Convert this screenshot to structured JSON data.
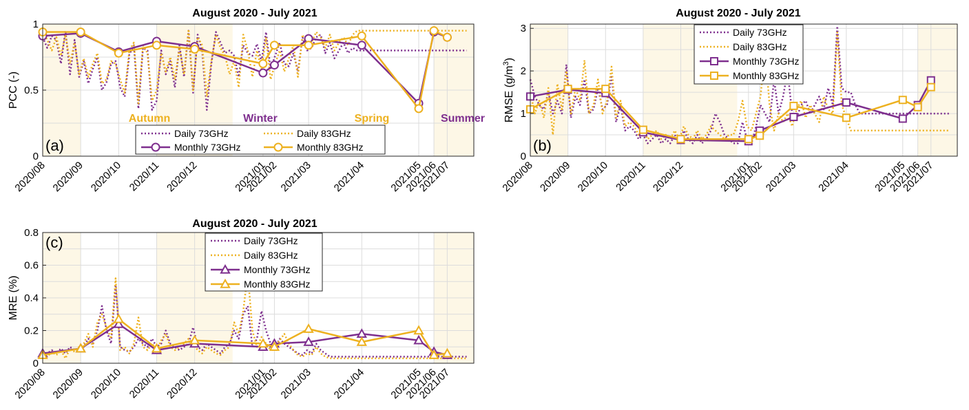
{
  "colors": {
    "c73": "#7e2f8e",
    "c83": "#edb120",
    "shade": "#fdf7e6"
  },
  "month_labels": [
    "2020/08",
    "2020/09",
    "2020/10",
    "2020/11",
    "2020/12",
    "2021/01",
    "2021/02",
    "2021/03",
    "2021/04",
    "2021/05",
    "2021/06",
    "2021/07"
  ],
  "chart_data": [
    {
      "id": "a",
      "type": "line",
      "panel_label": "(a)",
      "title": "August 2020 - July 2021",
      "ylabel": "PCC (-)",
      "ylim": [
        0,
        1
      ],
      "yticks": [
        "0",
        "0.5",
        "1"
      ],
      "grid": true,
      "legend_position": "bottom-center",
      "legend": [
        "Daily 73GHz",
        "Daily 83GHz",
        "Monthly 73GHz",
        "Monthly 83GHz"
      ],
      "season_labels": [
        {
          "text": "Autumn",
          "color": "c83"
        },
        {
          "text": "Winter",
          "color": "c73"
        },
        {
          "text": "Spring",
          "color": "c83"
        },
        {
          "text": "Summer",
          "color": "c73"
        }
      ],
      "x_monthly": [
        0,
        1,
        2,
        3,
        4,
        5.8,
        6.1,
        7,
        8.4,
        9.9,
        10.3,
        10.65
      ],
      "series": [
        {
          "name": "Monthly 73GHz",
          "color": "c73",
          "style": "solid",
          "marker": "circle",
          "values": [
            0.91,
            0.93,
            0.79,
            0.87,
            0.83,
            0.63,
            0.69,
            0.89,
            0.84,
            0.4,
            0.94,
            0.9
          ]
        },
        {
          "name": "Monthly 83GHz",
          "color": "c83",
          "style": "solid",
          "marker": "circle",
          "values": [
            0.94,
            0.94,
            0.78,
            0.84,
            0.81,
            0.7,
            0.84,
            0.84,
            0.91,
            0.36,
            0.95,
            0.9
          ]
        },
        {
          "name": "Daily 73GHz",
          "color": "c73",
          "style": "dotted",
          "start": 0,
          "step": 0.12,
          "values": [
            0.9,
            0.82,
            0.91,
            0.88,
            0.7,
            0.95,
            0.62,
            0.88,
            0.6,
            0.72,
            0.55,
            0.66,
            0.75,
            0.5,
            0.56,
            0.7,
            0.72,
            0.52,
            0.45,
            0.77,
            0.84,
            0.36,
            0.82,
            0.8,
            0.35,
            0.42,
            0.8,
            0.62,
            0.72,
            0.52,
            0.84,
            0.6,
            0.95,
            0.48,
            0.92,
            0.8,
            0.35,
            0.7,
            0.94,
            0.86,
            0.78,
            0.8,
            0.76,
            0.6,
            0.84,
            0.78,
            0.76,
            0.85,
            0.72,
            0.94,
            0.66,
            0.76,
            0.86,
            0.7,
            0.68,
            0.78,
            0.64,
            0.9,
            0.8,
            0.82,
            0.9,
            0.92,
            0.78,
            0.86,
            0.74,
            0.8,
            0.86,
            0.78,
            0.82,
            0.8,
            0.8,
            0.8,
            0.8,
            0.8,
            0.8,
            0.8,
            0.8,
            0.8,
            0.8,
            0.8,
            0.8,
            0.8,
            0.8,
            0.8,
            0.8,
            0.8,
            0.8,
            0.8,
            0.8,
            0.8,
            0.8,
            0.8,
            0.8,
            0.8
          ]
        },
        {
          "name": "Daily 83GHz",
          "color": "c83",
          "style": "dotted",
          "start": 0,
          "step": 0.12,
          "values": [
            0.94,
            0.88,
            0.8,
            0.9,
            0.76,
            0.92,
            0.7,
            0.86,
            0.62,
            0.74,
            0.6,
            0.7,
            0.78,
            0.55,
            0.58,
            0.72,
            0.7,
            0.58,
            0.48,
            0.8,
            0.86,
            0.4,
            0.84,
            0.78,
            0.42,
            0.5,
            0.78,
            0.64,
            0.75,
            0.58,
            0.82,
            0.62,
            0.96,
            0.5,
            0.9,
            0.84,
            0.45,
            0.72,
            0.92,
            0.82,
            0.76,
            0.62,
            0.72,
            0.52,
            0.92,
            0.8,
            0.6,
            0.8,
            0.66,
            0.9,
            0.58,
            0.7,
            0.8,
            0.64,
            0.74,
            0.84,
            0.6,
            0.92,
            0.84,
            0.86,
            0.94,
            0.9,
            0.82,
            0.92,
            0.8,
            0.86,
            0.9,
            0.84,
            0.92,
            0.95,
            0.95,
            0.95,
            0.95,
            0.95,
            0.95,
            0.95,
            0.95,
            0.95,
            0.95,
            0.95,
            0.95,
            0.95,
            0.95,
            0.95,
            0.95,
            0.95,
            0.95,
            0.95,
            0.95,
            0.95,
            0.95,
            0.95,
            0.95,
            0.95
          ]
        }
      ]
    },
    {
      "id": "b",
      "type": "line",
      "panel_label": "(b)",
      "title": "August 2020 - July 2021",
      "ylabel": "RMSE (g/m",
      "ylabel_sup": "3",
      "ylabel_end": ")",
      "ylim": [
        0,
        3.1
      ],
      "yticks": [
        "0",
        "1",
        "2",
        "3"
      ],
      "grid": true,
      "legend_position": "top-center",
      "legend": [
        "Daily 73GHz",
        "Daily 83GHz",
        "Monthly 73GHz",
        "Monthly 83GHz"
      ],
      "x_monthly": [
        0,
        1,
        2,
        3,
        4,
        5.8,
        6.1,
        7,
        8.4,
        9.9,
        10.3,
        10.65
      ],
      "series": [
        {
          "name": "Monthly 73GHz",
          "color": "c73",
          "style": "solid",
          "marker": "square",
          "values": [
            1.4,
            1.56,
            1.48,
            0.56,
            0.38,
            0.35,
            0.6,
            0.92,
            1.26,
            0.88,
            1.2,
            1.78
          ]
        },
        {
          "name": "Monthly 83GHz",
          "color": "c83",
          "style": "solid",
          "marker": "square",
          "values": [
            1.1,
            1.58,
            1.58,
            0.62,
            0.4,
            0.4,
            0.48,
            1.18,
            0.9,
            1.32,
            1.15,
            1.62
          ]
        },
        {
          "name": "Daily 73GHz",
          "color": "c73",
          "style": "dotted",
          "start": 0,
          "step": 0.12,
          "values": [
            1.8,
            1.4,
            1.2,
            1.1,
            1.5,
            1.0,
            1.3,
            1.0,
            2.15,
            0.9,
            1.4,
            1.2,
            1.8,
            1.0,
            1.1,
            1.6,
            1.1,
            1.2,
            1.9,
            0.8,
            1.2,
            0.6,
            0.7,
            0.6,
            0.4,
            0.5,
            0.3,
            0.4,
            0.5,
            0.3,
            0.4,
            0.3,
            0.5,
            0.3,
            0.6,
            0.4,
            0.3,
            0.5,
            0.3,
            0.4,
            0.6,
            1.0,
            0.8,
            0.5,
            0.4,
            0.3,
            0.3,
            0.8,
            0.4,
            0.3,
            0.7,
            1.2,
            1.0,
            0.8,
            1.8,
            1.0,
            1.4,
            2.0,
            1.0,
            0.9,
            1.2,
            1.3,
            1.0,
            1.2,
            1.4,
            1.1,
            1.6,
            1.2,
            3.05,
            1.6,
            1.5,
            1.5,
            1.2,
            1.0,
            1.0,
            1.0,
            1.0,
            1.0,
            1.0,
            1.0,
            1.0,
            1.0,
            1.0,
            1.0,
            1.0,
            1.0,
            1.0,
            1.0,
            1.0,
            1.0,
            1.0,
            1.0,
            1.0,
            1.0
          ]
        },
        {
          "name": "Daily 83GHz",
          "color": "c83",
          "style": "dotted",
          "start": 0,
          "step": 0.12,
          "values": [
            1.5,
            1.0,
            1.3,
            0.9,
            1.6,
            0.5,
            1.7,
            1.1,
            2.0,
            1.0,
            1.6,
            1.3,
            2.25,
            1.0,
            1.2,
            1.8,
            1.0,
            1.3,
            2.1,
            0.9,
            1.3,
            0.7,
            0.8,
            0.7,
            0.5,
            0.6,
            0.4,
            0.5,
            0.6,
            0.4,
            0.5,
            0.4,
            0.6,
            0.4,
            0.7,
            0.5,
            0.4,
            0.6,
            0.4,
            0.5,
            0.7,
            0.6,
            0.5,
            0.4,
            0.5,
            0.5,
            0.8,
            1.3,
            0.7,
            0.6,
            1.0,
            1.4,
            2.5,
            1.2,
            0.6,
            1.0,
            0.8,
            1.0,
            0.7,
            1.1,
            1.3,
            0.9,
            1.2,
            1.0,
            0.8,
            1.4,
            1.1,
            1.0,
            2.9,
            1.2,
            0.9,
            0.6,
            0.6,
            0.6,
            0.6,
            0.6,
            0.6,
            0.6,
            0.6,
            0.6,
            0.6,
            0.6,
            0.6,
            0.6,
            0.6,
            0.6,
            0.6,
            0.6,
            0.6,
            0.6,
            0.6,
            0.6,
            0.6,
            0.6
          ]
        }
      ]
    },
    {
      "id": "c",
      "type": "line",
      "panel_label": "(c)",
      "title": "August 2020 - July 2021",
      "ylabel": "MRE (%)",
      "ylim": [
        0,
        0.8
      ],
      "yticks": [
        "0",
        "0.2",
        "0.4",
        "0.6",
        "0.8"
      ],
      "grid": true,
      "legend_position": "top-center",
      "legend": [
        "Daily 73GHz",
        "Daily 83GHz",
        "Monthly 73GHz",
        "Monthly 83GHz"
      ],
      "x_monthly": [
        0,
        1,
        2,
        3,
        4,
        5.8,
        6.1,
        7,
        8.4,
        9.9,
        10.3,
        10.65
      ],
      "series": [
        {
          "name": "Monthly 73GHz",
          "color": "c73",
          "style": "solid",
          "marker": "triangle",
          "values": [
            0.06,
            0.09,
            0.24,
            0.08,
            0.12,
            0.1,
            0.12,
            0.13,
            0.18,
            0.14,
            0.07,
            0.05
          ]
        },
        {
          "name": "Monthly 83GHz",
          "color": "c83",
          "style": "solid",
          "marker": "triangle",
          "values": [
            0.05,
            0.09,
            0.27,
            0.09,
            0.14,
            0.12,
            0.1,
            0.21,
            0.13,
            0.2,
            0.05,
            0.06
          ]
        },
        {
          "name": "Daily 73GHz",
          "color": "c73",
          "style": "dotted",
          "start": 0,
          "step": 0.12,
          "values": [
            0.07,
            0.06,
            0.08,
            0.06,
            0.09,
            0.06,
            0.1,
            0.08,
            0.09,
            0.1,
            0.15,
            0.12,
            0.2,
            0.35,
            0.2,
            0.12,
            0.48,
            0.1,
            0.08,
            0.07,
            0.1,
            0.15,
            0.12,
            0.1,
            0.15,
            0.1,
            0.12,
            0.2,
            0.12,
            0.1,
            0.08,
            0.1,
            0.12,
            0.22,
            0.1,
            0.08,
            0.12,
            0.1,
            0.08,
            0.06,
            0.1,
            0.12,
            0.2,
            0.15,
            0.3,
            0.35,
            0.1,
            0.15,
            0.32,
            0.2,
            0.12,
            0.1,
            0.15,
            0.12,
            0.1,
            0.08,
            0.06,
            0.05,
            0.08,
            0.06,
            0.12,
            0.08,
            0.06,
            0.04,
            0.04,
            0.04,
            0.04,
            0.04,
            0.04,
            0.04,
            0.04,
            0.04,
            0.04,
            0.04,
            0.04,
            0.04,
            0.04,
            0.04,
            0.04,
            0.04,
            0.04,
            0.04,
            0.04,
            0.04,
            0.04,
            0.04,
            0.04,
            0.04,
            0.04,
            0.04,
            0.04,
            0.04,
            0.04,
            0.04
          ]
        },
        {
          "name": "Daily 83GHz",
          "color": "c83",
          "style": "dotted",
          "start": 0,
          "step": 0.12,
          "values": [
            0.05,
            0.04,
            0.07,
            0.05,
            0.08,
            0.03,
            0.09,
            0.07,
            0.1,
            0.12,
            0.18,
            0.1,
            0.25,
            0.3,
            0.22,
            0.15,
            0.52,
            0.08,
            0.1,
            0.06,
            0.12,
            0.28,
            0.1,
            0.08,
            0.12,
            0.08,
            0.14,
            0.18,
            0.1,
            0.08,
            0.1,
            0.12,
            0.15,
            0.12,
            0.08,
            0.06,
            0.1,
            0.08,
            0.06,
            0.05,
            0.08,
            0.1,
            0.25,
            0.18,
            0.32,
            0.55,
            0.2,
            0.1,
            0.16,
            0.12,
            0.08,
            0.1,
            0.14,
            0.18,
            0.12,
            0.08,
            0.05,
            0.04,
            0.06,
            0.05,
            0.1,
            0.06,
            0.04,
            0.03,
            0.03,
            0.03,
            0.03,
            0.03,
            0.03,
            0.03,
            0.03,
            0.03,
            0.03,
            0.03,
            0.03,
            0.03,
            0.03,
            0.03,
            0.03,
            0.03,
            0.03,
            0.03,
            0.03,
            0.03,
            0.03,
            0.03,
            0.03,
            0.03,
            0.03,
            0.03,
            0.03,
            0.03,
            0.03,
            0.03
          ]
        }
      ]
    }
  ]
}
